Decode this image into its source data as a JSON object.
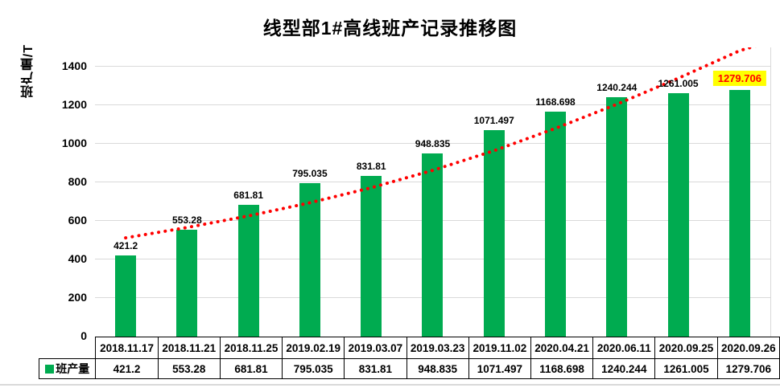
{
  "title": "线型部1#高线班产记录推移图",
  "y_axis_title": "班产量/T",
  "legend_label": "班产量",
  "colors": {
    "bar": "#00AB50",
    "trendline": "#FF0000",
    "highlight_bg": "#FFFF00",
    "highlight_text": "#FF0000",
    "gridline": "#D9D9D9",
    "table_border": "#000000",
    "label_text": "#000000",
    "background": "#FFFFFF"
  },
  "chart_data": {
    "type": "bar",
    "title": "线型部1#高线班产记录推移图",
    "xlabel": "",
    "ylabel": "班产量/T",
    "categories": [
      "2018.11.17",
      "2018.11.21",
      "2018.11.25",
      "2019.02.19",
      "2019.03.07",
      "2019.03.23",
      "2019.11.02",
      "2020.04.21",
      "2020.06.11",
      "2020.09.25",
      "2020.09.26"
    ],
    "series": [
      {
        "name": "班产量",
        "values": [
          421.2,
          553.28,
          681.81,
          795.035,
          831.81,
          948.835,
          1071.497,
          1168.698,
          1240.244,
          1261.005,
          1279.706
        ]
      }
    ],
    "ylim": [
      0,
      1500
    ],
    "yticks": [
      0,
      200,
      400,
      600,
      800,
      1000,
      1200,
      1400
    ],
    "grid": true,
    "legend_position": "table-left",
    "data_labels": true,
    "highlight_last_label": true,
    "data_table_shown": true,
    "trendline": {
      "type": "exponential",
      "style": "dotted",
      "color": "#FF0000",
      "values_at_categories": [
        512,
        566,
        626,
        694,
        772,
        862,
        964,
        1080,
        1205,
        1340,
        1483
      ],
      "forecast_end": {
        "t": 10.5,
        "value": 1530
      }
    }
  }
}
